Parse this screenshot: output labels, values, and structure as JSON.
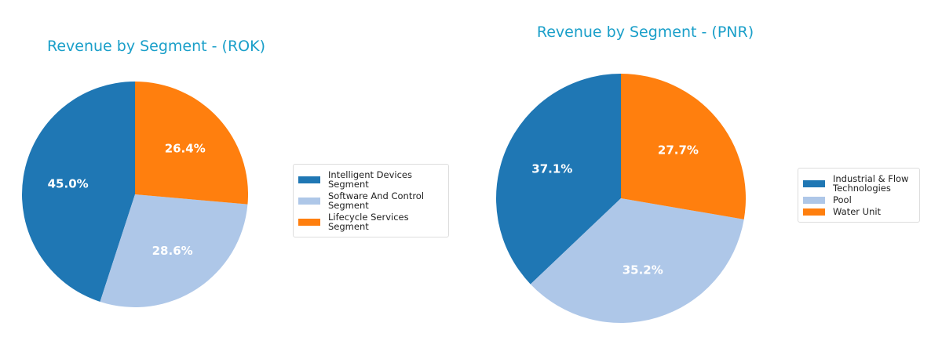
{
  "chart_data": [
    {
      "type": "pie",
      "title": "Revenue by Segment - (ROK)",
      "labels": [
        "Intelligent Devices Segment",
        "Software And Control Segment",
        "Lifecycle Services Segment"
      ],
      "legend_labels": [
        [
          "Intelligent Devices",
          "Segment"
        ],
        [
          "Software And Control",
          "Segment"
        ],
        [
          "Lifecycle Services Segment"
        ]
      ],
      "values": [
        45.0,
        28.6,
        26.4
      ],
      "pct_labels": [
        "45.0%",
        "28.6%",
        "26.4%"
      ],
      "colors": [
        "#1f77b4",
        "#aec7e8",
        "#ff7f0e"
      ],
      "startangle": 90,
      "legend": "right"
    },
    {
      "type": "pie",
      "title": "Revenue by Segment - (PNR)",
      "labels": [
        "Industrial & Flow Technologies",
        "Pool",
        "Water Unit"
      ],
      "legend_labels": [
        [
          "Industrial & Flow",
          "Technologies"
        ],
        [
          "Pool"
        ],
        [
          "Water Unit"
        ]
      ],
      "values": [
        37.1,
        35.2,
        27.7
      ],
      "pct_labels": [
        "37.1%",
        "35.2%",
        "27.7%"
      ],
      "colors": [
        "#1f77b4",
        "#aec7e8",
        "#ff7f0e"
      ],
      "startangle": 90,
      "legend": "right"
    }
  ]
}
